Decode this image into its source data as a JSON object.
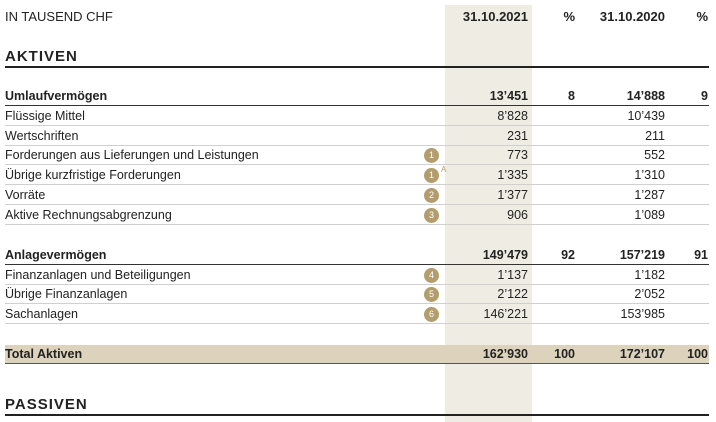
{
  "header": {
    "unit": "IN TAUSEND CHF",
    "col1": "31.10.2021",
    "pct1": "%",
    "col2": "31.10.2020",
    "pct2": "%"
  },
  "sections": [
    {
      "title": "AKTIVEN",
      "groups": [
        {
          "label": "Umlaufvermögen",
          "v2021": "13’451",
          "p2021": "8",
          "v2020": "14’888",
          "p2020": "9",
          "rows": [
            {
              "label": "Flüssige Mittel",
              "v2021": "8’828",
              "v2020": "10’439"
            },
            {
              "label": "Wertschriften",
              "v2021": "231",
              "v2020": "211"
            },
            {
              "label": "Forderungen aus Lieferungen und Leistungen",
              "note": "1",
              "v2021": "773",
              "v2020": "552"
            },
            {
              "label": "Übrige kurzfristige Forderungen",
              "note": "1",
              "note_sup": "A",
              "v2021": "1’335",
              "v2020": "1’310"
            },
            {
              "label": "Vorräte",
              "note": "2",
              "v2021": "1’377",
              "v2020": "1’287"
            },
            {
              "label": "Aktive Rechnungsabgrenzung",
              "note": "3",
              "v2021": "906",
              "v2020": "1’089"
            }
          ]
        },
        {
          "label": "Anlagevermögen",
          "v2021": "149’479",
          "p2021": "92",
          "v2020": "157’219",
          "p2020": "91",
          "rows": [
            {
              "label": "Finanzanlagen und Beteiligungen",
              "note": "4",
              "v2021": "1’137",
              "v2020": "1’182"
            },
            {
              "label": "Übrige Finanzanlagen",
              "note": "5",
              "v2021": "2’122",
              "v2020": "2’052"
            },
            {
              "label": "Sachanlagen",
              "note": "6",
              "v2021": "146’221",
              "v2020": "153’985"
            }
          ]
        }
      ],
      "total": {
        "label": "Total Aktiven",
        "v2021": "162’930",
        "p2021": "100",
        "v2020": "172’107",
        "p2020": "100"
      }
    },
    {
      "title": "PASSIVEN"
    }
  ]
}
